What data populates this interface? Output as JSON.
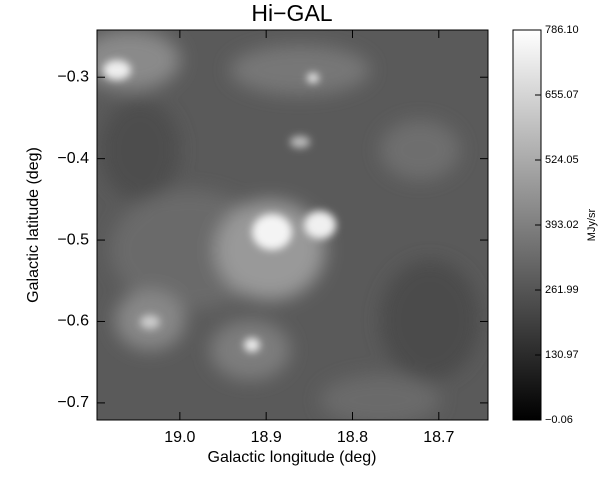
{
  "chart_data": {
    "type": "image",
    "title": "Hi−GAL",
    "xlabel": "Galactic longitude (deg)",
    "ylabel": "Galactic latitude (deg)",
    "xlim": [
      19.096,
      18.643
    ],
    "xticks": [
      {
        "value": 19.0,
        "label": "19.0"
      },
      18.9,
      18.8,
      18.7
    ],
    "ylim": [
      -0.721,
      -0.242
    ],
    "yticks": [
      {
        "value": -0.3,
        "label": "−0.3"
      },
      {
        "value": -0.4,
        "label": "−0.4"
      },
      {
        "value": -0.5,
        "label": "−0.5"
      },
      {
        "value": -0.6,
        "label": "−0.6"
      },
      {
        "value": -0.7,
        "label": "−0.7"
      }
    ],
    "colorbar": {
      "label": "MJy/sr",
      "lim": [
        -0.06,
        786.1
      ],
      "ticks": [
        {
          "value": -0.06,
          "label": "−0.06"
        },
        130.97,
        261.99,
        393.02,
        524.05,
        655.07,
        {
          "value": 786.1,
          "label": "786.10"
        }
      ]
    }
  }
}
